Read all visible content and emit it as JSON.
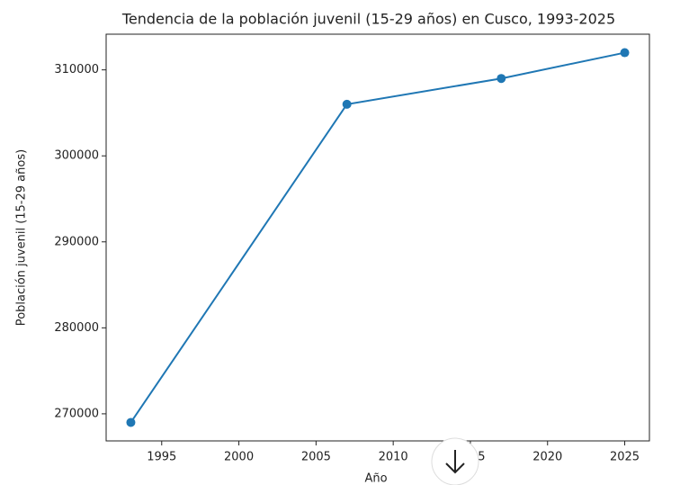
{
  "chart_data": {
    "type": "line",
    "title": "Tendencia de la población juvenil (15-29 años) en Cusco, 1993-2025",
    "x_label": "Año",
    "y_label": "Población juvenil (15-29 años)",
    "x": [
      1993,
      2007,
      2017,
      2025
    ],
    "series": [
      {
        "name": "Población juvenil",
        "color": "#1f77b4",
        "values": [
          269000,
          306000,
          309000,
          312000
        ]
      }
    ],
    "xlim": [
      1991.4,
      2026.6
    ],
    "xticks": [
      1995,
      2000,
      2005,
      2010,
      2015,
      2020,
      2025
    ],
    "ylim": [
      266850,
      314150
    ],
    "yticks": [
      270000,
      280000,
      290000,
      300000,
      310000
    ]
  }
}
